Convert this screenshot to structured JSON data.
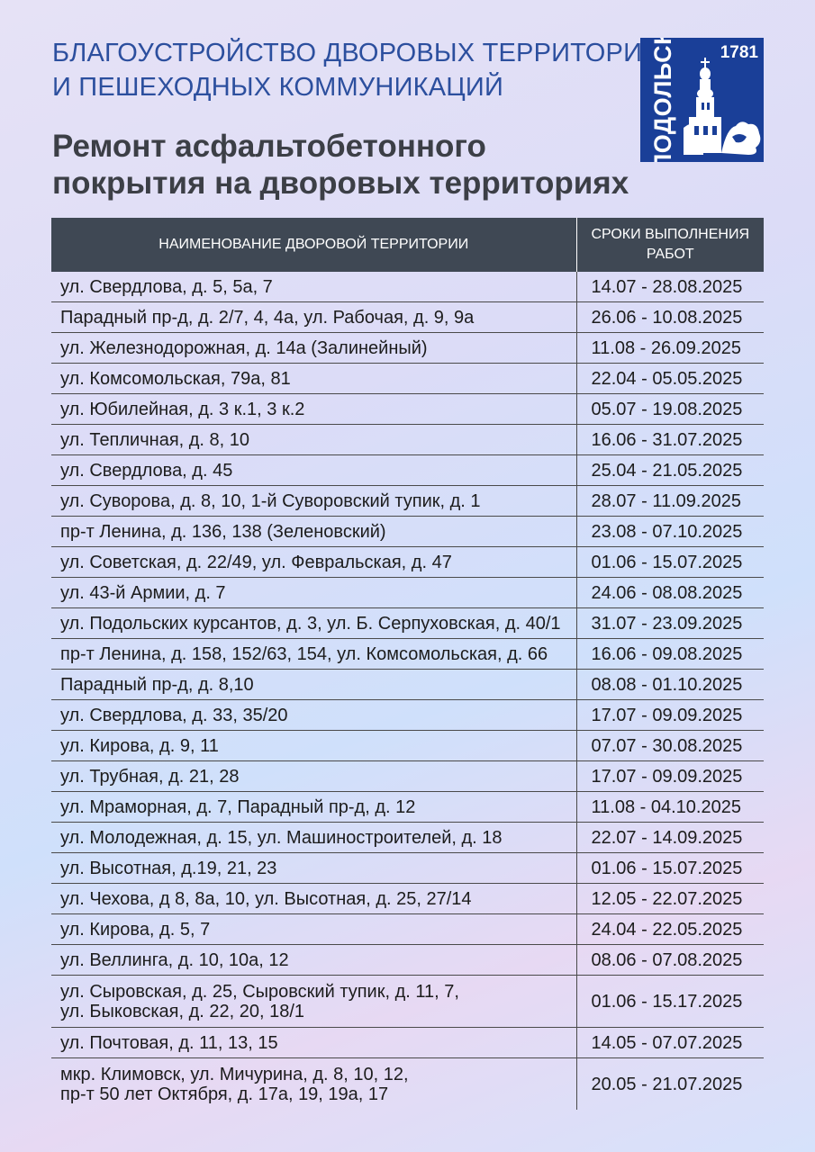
{
  "header": {
    "subtitle_line1": "БЛАГОУСТРОЙСТВО ДВОРОВЫХ ТЕРРИТОРИЙ",
    "subtitle_line2": "И ПЕШЕХОДНЫХ КОММУНИКАЦИЙ",
    "title_line1": "Ремонт асфальтобетонного",
    "title_line2": "покрытия на дворовых территориях"
  },
  "logo": {
    "city": "ПОДОЛЬСК",
    "year": "1781",
    "bg_color": "#1a3f98"
  },
  "table": {
    "columns": [
      "НАИМЕНОВАНИЕ ДВОРОВОЙ ТЕРРИТОРИИ",
      "СРОКИ ВЫПОЛНЕНИЯ РАБОТ"
    ],
    "rows": [
      {
        "name": [
          "ул. Свердлова, д. 5, 5а, 7"
        ],
        "dates": "14.07 - 28.08.2025"
      },
      {
        "name": [
          "Парадный пр-д, д. 2/7, 4, 4а, ул. Рабочая, д. 9, 9а"
        ],
        "dates": "26.06 - 10.08.2025"
      },
      {
        "name": [
          "ул. Железнодорожная, д. 14а (Залинейный)"
        ],
        "dates": "11.08 - 26.09.2025"
      },
      {
        "name": [
          "ул. Комсомольская, 79а, 81"
        ],
        "dates": "22.04 - 05.05.2025"
      },
      {
        "name": [
          "ул. Юбилейная, д. 3 к.1, 3 к.2"
        ],
        "dates": "05.07 - 19.08.2025"
      },
      {
        "name": [
          "ул. Тепличная, д. 8, 10"
        ],
        "dates": "16.06 - 31.07.2025"
      },
      {
        "name": [
          "ул. Свердлова, д. 45"
        ],
        "dates": "25.04 - 21.05.2025"
      },
      {
        "name": [
          "ул. Суворова, д. 8, 10, 1-й Суворовский тупик, д. 1"
        ],
        "dates": "28.07 - 11.09.2025"
      },
      {
        "name": [
          "пр-т Ленина, д. 136, 138 (Зеленовский)"
        ],
        "dates": "23.08 - 07.10.2025"
      },
      {
        "name": [
          "ул. Советская, д. 22/49, ул. Февральская, д. 47"
        ],
        "dates": "01.06 - 15.07.2025"
      },
      {
        "name": [
          "ул. 43-й Армии, д. 7"
        ],
        "dates": "24.06 - 08.08.2025"
      },
      {
        "name": [
          "ул. Подольских курсантов, д. 3, ул. Б. Серпуховская, д. 40/1"
        ],
        "dates": "31.07 - 23.09.2025"
      },
      {
        "name": [
          "пр-т Ленина, д. 158, 152/63, 154, ул. Комсомольская, д. 66"
        ],
        "dates": "16.06 - 09.08.2025"
      },
      {
        "name": [
          "Парадный пр-д, д. 8,10"
        ],
        "dates": "08.08 - 01.10.2025"
      },
      {
        "name": [
          "ул. Свердлова, д. 33, 35/20"
        ],
        "dates": "17.07 - 09.09.2025"
      },
      {
        "name": [
          "ул. Кирова, д. 9, 11"
        ],
        "dates": "07.07 - 30.08.2025"
      },
      {
        "name": [
          "ул. Трубная, д. 21, 28"
        ],
        "dates": "17.07 - 09.09.2025"
      },
      {
        "name": [
          "ул. Мраморная, д. 7, Парадный пр-д, д. 12"
        ],
        "dates": "11.08 - 04.10.2025"
      },
      {
        "name": [
          "ул. Молодежная, д. 15, ул. Машиностроителей, д. 18"
        ],
        "dates": "22.07 - 14.09.2025"
      },
      {
        "name": [
          "ул. Высотная, д.19, 21, 23"
        ],
        "dates": "01.06 - 15.07.2025"
      },
      {
        "name": [
          "ул. Чехова, д 8, 8а, 10, ул. Высотная, д. 25, 27/14"
        ],
        "dates": "12.05 - 22.07.2025"
      },
      {
        "name": [
          "ул. Кирова, д. 5, 7"
        ],
        "dates": "24.04 - 22.05.2025"
      },
      {
        "name": [
          "ул. Веллинга, д. 10, 10а, 12"
        ],
        "dates": "08.06 - 07.08.2025"
      },
      {
        "name": [
          "ул. Сыровская, д. 25, Сыровский тупик, д. 11, 7,",
          "ул. Быковская, д. 22, 20, 18/1"
        ],
        "dates": "01.06 - 15.17.2025"
      },
      {
        "name": [
          "ул. Почтовая, д. 11, 13, 15"
        ],
        "dates": "14.05 - 07.07.2025"
      },
      {
        "name": [
          "мкр. Климовск, ул. Мичурина, д. 8, 10, 12,",
          "пр-т 50 лет Октября, д. 17а, 19, 19а, 17"
        ],
        "dates": "20.05 - 21.07.2025"
      }
    ]
  }
}
